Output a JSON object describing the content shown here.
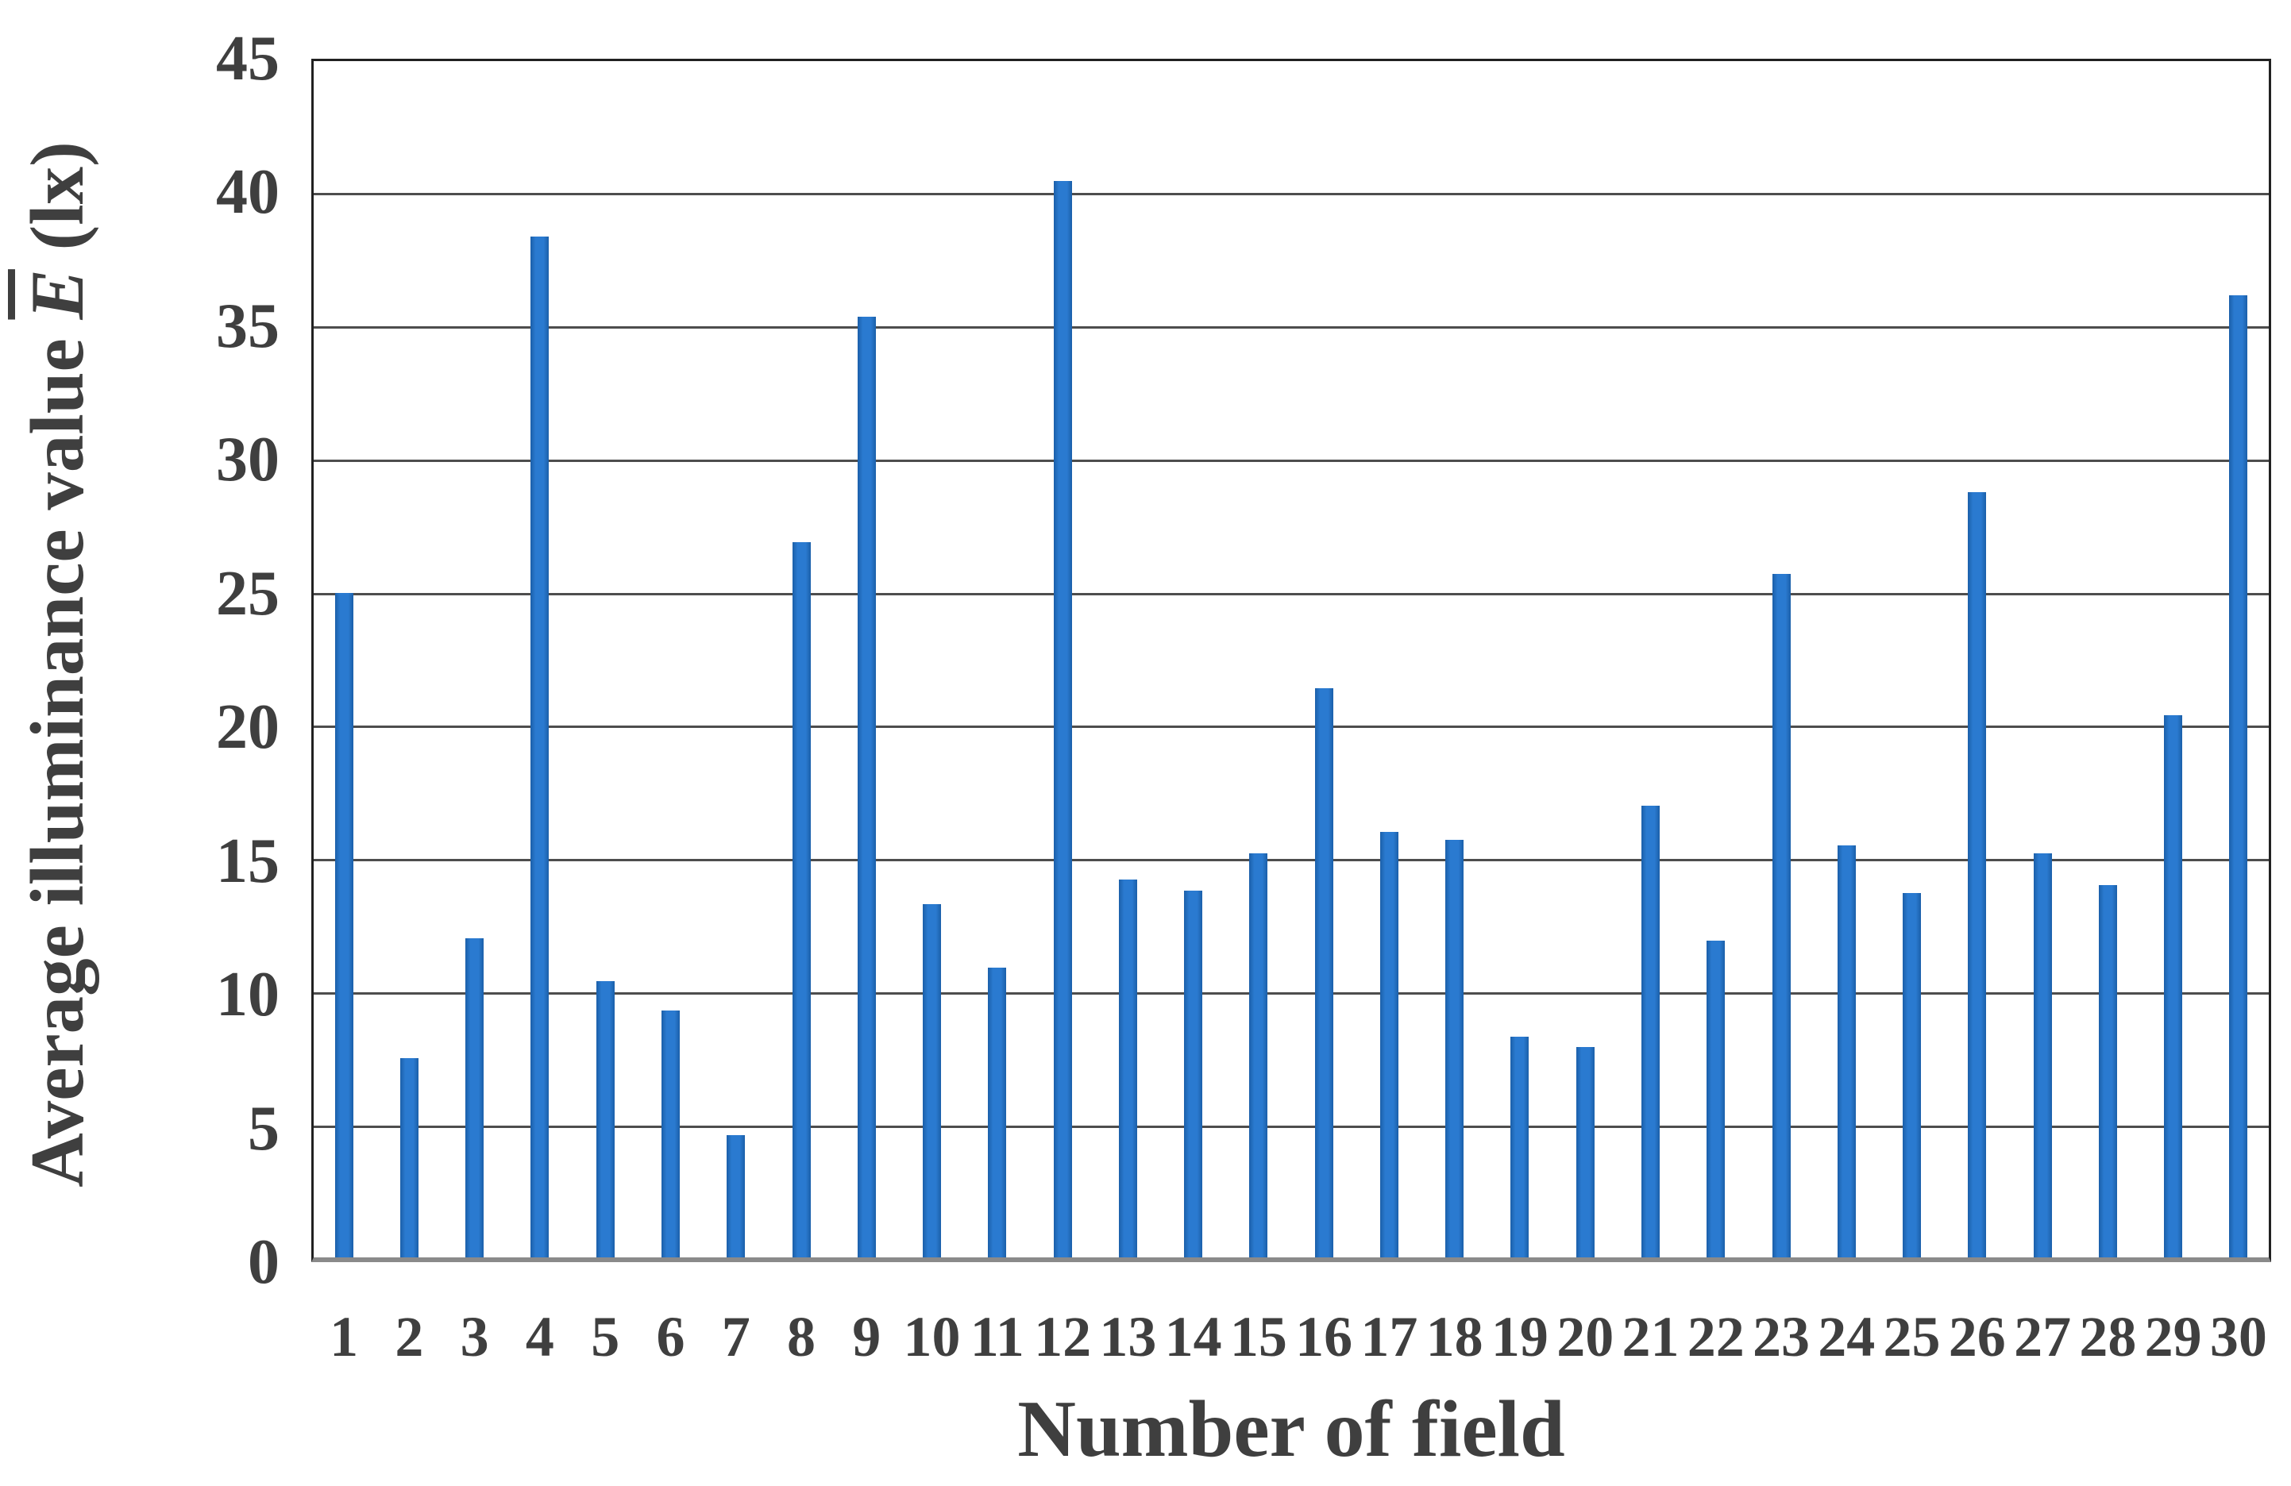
{
  "chart_data": {
    "type": "bar",
    "title": "",
    "xlabel": "Number of field",
    "ylabel": "Average illuminance value Ē (lx)",
    "ylabel_parts": {
      "prefix": "Average illuminance value ",
      "e_symbol": "E",
      "suffix": " (lx)"
    },
    "categories": [
      1,
      2,
      3,
      4,
      5,
      6,
      7,
      8,
      9,
      10,
      11,
      12,
      13,
      14,
      15,
      16,
      17,
      18,
      19,
      20,
      21,
      22,
      23,
      24,
      25,
      26,
      27,
      28,
      29,
      30
    ],
    "values": [
      25.0,
      7.5,
      12.0,
      38.4,
      10.4,
      9.3,
      4.6,
      26.9,
      35.4,
      13.3,
      10.9,
      40.5,
      14.2,
      13.8,
      15.2,
      21.4,
      16.0,
      15.7,
      8.3,
      7.9,
      17.0,
      11.9,
      25.7,
      15.5,
      13.7,
      28.8,
      15.2,
      14.0,
      20.4,
      36.2
    ],
    "yticks": [
      0,
      5,
      10,
      15,
      20,
      25,
      30,
      35,
      40,
      45
    ],
    "ylim": [
      0,
      45
    ],
    "grid": true,
    "legend": "none",
    "colors": {
      "bar": "#2a7ad0",
      "bar_edge": "#1b5fa9",
      "gridline": "#4d4d4d",
      "axis_baseline": "#8a8a8a",
      "plot_border": "#212121",
      "text": "#3f3f3f"
    }
  }
}
